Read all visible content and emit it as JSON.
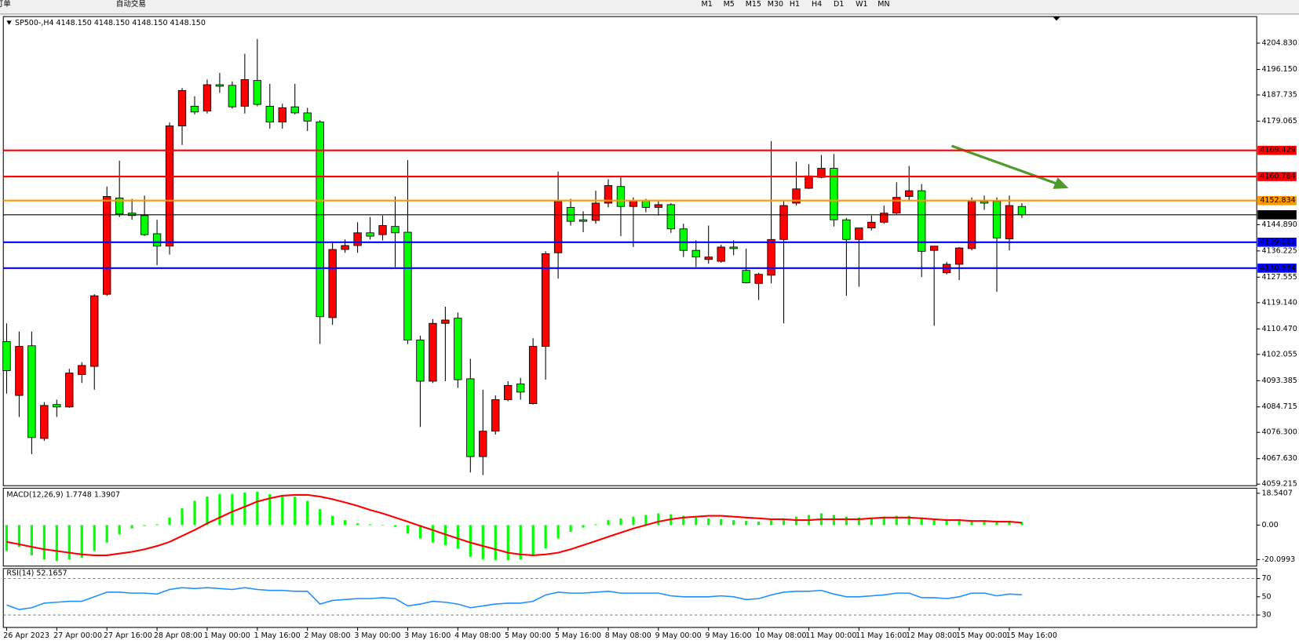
{
  "toolbar": {
    "buttons": [
      "新订单",
      "自动交易"
    ],
    "timeframes": [
      "M1",
      "M5",
      "M15",
      "M30",
      "H1",
      "H4",
      "D1",
      "W1",
      "MN"
    ]
  },
  "chart_data": [
    {
      "type": "candlestick",
      "title": "SP500-,H4 4148.150 4148.150 4148.150 4148.150",
      "x": [
        "26 Apr 2023",
        null,
        null,
        null,
        "27 Apr 00:00",
        null,
        null,
        null,
        "27 Apr 16:00",
        null,
        null,
        null,
        "28 Apr 08:00",
        null,
        null,
        null,
        "1 May 00:00",
        null,
        null,
        null,
        "1 May 16:00",
        null,
        null,
        null,
        "2 May 08:00",
        null,
        null,
        null,
        "3 May 00:00",
        null,
        null,
        null,
        "3 May 16:00",
        null,
        null,
        null,
        "4 May 08:00",
        null,
        null,
        null,
        "5 May 00:00",
        null,
        null,
        null,
        "5 May 16:00",
        null,
        null,
        null,
        "8 May 08:00",
        null,
        null,
        null,
        "9 May 00:00",
        null,
        null,
        null,
        "9 May 16:00",
        null,
        null,
        null,
        "10 May 08:00",
        null,
        null,
        null,
        "11 May 00:00",
        null,
        null,
        null,
        "11 May 16:00",
        null,
        null,
        null,
        "12 May 08:00",
        null,
        null,
        null,
        "15 May 00:00",
        null,
        null,
        null,
        "15 May 16:00",
        null
      ],
      "open": [
        4106.3,
        4088.5,
        4104.9,
        4074.3,
        4085.5,
        4084.7,
        4095.4,
        4098.1,
        4121.9,
        4153.7,
        4148.7,
        4147.9,
        4141.9,
        4137.8,
        4177.5,
        4184.0,
        4182.4,
        4191.1,
        4190.9,
        4184.0,
        4192.5,
        4184.0,
        4178.8,
        4183.8,
        4181.8,
        4178.8,
        4114.2,
        4136.7,
        4138.0,
        4142.2,
        4141.6,
        4144.3,
        4142.4,
        4106.8,
        4093.2,
        4112.3,
        4114.0,
        4094.0,
        4068.3,
        4076.7,
        4087.1,
        4092.3,
        4085.8,
        4104.7,
        4135.6,
        4150.6,
        4146.5,
        4146.3,
        4152.0,
        4157.5,
        4150.9,
        4152.8,
        4150.6,
        4151.5,
        4143.5,
        4136.4,
        4133.4,
        4132.8,
        4137.5,
        4129.8,
        4125.5,
        4128.2,
        4140.0,
        4152.0,
        4156.9,
        4160.5,
        4163.5,
        4146.5,
        4140.0,
        4143.8,
        4145.7,
        4148.7,
        4154.2,
        4156.1,
        4136.4,
        4129.0,
        4131.8,
        4137.0,
        4152.6,
        4152.6,
        4140.2,
        4150.9
      ],
      "high": [
        4112.3,
        4109.6,
        4109.6,
        4086.3,
        4087.1,
        4097.3,
        4099.5,
        4121.9,
        4157.5,
        4166.0,
        4153.4,
        4154.5,
        4146.5,
        4178.6,
        4190.0,
        4187.3,
        4192.8,
        4195.0,
        4192.2,
        4201.3,
        4206.2,
        4191.4,
        4184.8,
        4191.4,
        4183.5,
        4179.4,
        4139.1,
        4140.0,
        4145.7,
        4147.4,
        4147.9,
        4154.2,
        4166.2,
        4108.2,
        4113.7,
        4117.8,
        4115.9,
        4100.6,
        4090.4,
        4088.5,
        4093.2,
        4094.3,
        4107.4,
        4136.1,
        4162.4,
        4153.4,
        4149.3,
        4156.1,
        4159.9,
        4160.5,
        4153.9,
        4153.4,
        4153.1,
        4152.0,
        4145.2,
        4139.7,
        4144.6,
        4138.3,
        4139.7,
        4137.0,
        4129.0,
        4172.5,
        4152.6,
        4165.7,
        4164.9,
        4167.9,
        4168.2,
        4147.1,
        4143.8,
        4147.9,
        4151.2,
        4158.9,
        4164.3,
        4158.3,
        4137.8,
        4132.6,
        4137.5,
        4153.9,
        4154.5,
        4153.9,
        4154.5,
        4152.0
      ],
      "low": [
        4089.1,
        4081.4,
        4069.1,
        4073.5,
        4081.4,
        4084.4,
        4092.6,
        4090.4,
        4121.4,
        4147.4,
        4146.5,
        4141.1,
        4131.5,
        4135.0,
        4171.2,
        4181.3,
        4181.6,
        4188.4,
        4183.2,
        4181.6,
        4184.0,
        4176.6,
        4176.6,
        4181.3,
        4175.8,
        4105.5,
        4111.8,
        4135.6,
        4135.6,
        4140.0,
        4139.7,
        4130.9,
        4105.5,
        4078.1,
        4092.6,
        4093.2,
        4091.0,
        4063.1,
        4062.2,
        4075.6,
        4086.6,
        4087.1,
        4085.5,
        4093.7,
        4127.1,
        4144.6,
        4142.4,
        4145.2,
        4150.6,
        4141.1,
        4137.5,
        4149.0,
        4147.9,
        4142.2,
        4134.2,
        4130.9,
        4132.0,
        4132.3,
        4134.8,
        4125.5,
        4120.0,
        4125.5,
        4112.3,
        4151.2,
        4156.7,
        4160.2,
        4144.3,
        4121.4,
        4124.4,
        4143.0,
        4145.2,
        4148.4,
        4152.8,
        4127.6,
        4111.5,
        4128.5,
        4126.6,
        4136.4,
        4149.8,
        4122.7,
        4136.4,
        4147.1
      ],
      "close": [
        4096.7,
        4104.7,
        4074.6,
        4085.2,
        4084.7,
        4095.9,
        4098.4,
        4121.4,
        4154.2,
        4148.4,
        4147.9,
        4141.6,
        4137.8,
        4177.5,
        4189.2,
        4182.1,
        4191.1,
        4190.6,
        4183.8,
        4192.8,
        4184.6,
        4178.8,
        4183.5,
        4181.8,
        4179.1,
        4114.5,
        4136.7,
        4138.0,
        4142.2,
        4141.1,
        4144.6,
        4142.2,
        4106.8,
        4093.2,
        4112.3,
        4113.4,
        4093.7,
        4068.3,
        4076.7,
        4087.1,
        4091.8,
        4089.6,
        4104.7,
        4135.3,
        4152.6,
        4146.0,
        4146.0,
        4152.0,
        4157.8,
        4150.9,
        4152.8,
        4150.6,
        4151.5,
        4143.5,
        4136.4,
        4134.2,
        4134.2,
        4137.5,
        4137.0,
        4125.7,
        4128.5,
        4140.0,
        4151.2,
        4156.7,
        4161.0,
        4163.5,
        4146.5,
        4140.0,
        4143.8,
        4145.7,
        4148.7,
        4153.9,
        4156.1,
        4136.1,
        4137.8,
        4131.8,
        4137.2,
        4152.6,
        4152.0,
        4140.5,
        4151.2,
        4148.15
      ],
      "up_color": "#ff0000",
      "down_color": "#00ff00",
      "ylim": [
        4058.7,
        4213.6
      ],
      "yticks": [
        {
          "value": 4204.83,
          "label": "4204.830"
        },
        {
          "value": 4196.15,
          "label": "4196.150"
        },
        4187.735,
        4179.065,
        {
          "value": 4144.89,
          "label": "4144.890"
        },
        4136.225,
        4127.555,
        {
          "value": 4119.14,
          "label": "4119.140"
        },
        {
          "value": 4110.47,
          "label": "4110.470"
        },
        4102.055,
        4093.385,
        4084.715,
        {
          "value": 4076.3,
          "label": "4076.300"
        },
        {
          "value": 4067.63,
          "label": "4067.630"
        },
        4059.215
      ],
      "levels": [
        {
          "value": 4169.429,
          "color": "#ff0000"
        },
        {
          "value": 4160.784,
          "color": "#ff0000"
        },
        {
          "value": 4152.834,
          "color": "#ff9900"
        },
        {
          "value": 4148.15,
          "label": "4148.150",
          "color": "#000000"
        },
        {
          "value": 4139.091,
          "color": "#0000ff"
        },
        {
          "value": 4130.534,
          "color": "#0000ff"
        }
      ]
    },
    {
      "type": "bar",
      "title": "MACD(12,26,9) 1.7748 1.3907",
      "ylim": [
        -23.9,
        21.5
      ],
      "yticks": [
        18.5407,
        {
          "value": 0,
          "label": "0.00"
        },
        -20.0993
      ],
      "series": [
        {
          "kind": "bar",
          "color": "#00ff00",
          "values": [
            -15.1,
            -12.7,
            -17.6,
            -20.0,
            -21.0,
            -20.0,
            -19.0,
            -15.1,
            -10.2,
            -5.4,
            -2.0,
            -0.5,
            0.5,
            4.4,
            9.8,
            14.1,
            16.6,
            18.0,
            18.0,
            19.0,
            19.5,
            18.0,
            17.6,
            16.6,
            14.1,
            9.3,
            5.4,
            2.9,
            1.0,
            0.5,
            -0.3,
            -1.0,
            -4.9,
            -7.8,
            -10.2,
            -11.7,
            -13.7,
            -18.5,
            -20.0,
            -20.5,
            -20.5,
            -20.0,
            -17.6,
            -13.7,
            -7.8,
            -3.9,
            -1.5,
            0.5,
            2.9,
            3.9,
            4.9,
            5.9,
            6.8,
            6.3,
            5.4,
            4.4,
            3.9,
            3.4,
            2.9,
            2.4,
            2.0,
            2.9,
            3.9,
            4.9,
            5.9,
            6.8,
            5.9,
            4.9,
            4.4,
            4.4,
            4.9,
            5.4,
            5.4,
            4.4,
            3.4,
            2.4,
            2.4,
            2.9,
            2.9,
            2.4,
            2.4,
            1.7748
          ]
        },
        {
          "kind": "line",
          "color": "#ff0000",
          "values": [
            -9.8,
            -11.2,
            -12.7,
            -14.1,
            -15.1,
            -16.1,
            -17.1,
            -17.6,
            -17.6,
            -16.6,
            -15.6,
            -14.1,
            -12.2,
            -9.8,
            -6.3,
            -2.9,
            1.0,
            4.4,
            7.8,
            10.7,
            13.7,
            15.6,
            17.1,
            17.6,
            17.6,
            16.6,
            15.1,
            13.2,
            11.2,
            8.8,
            6.8,
            4.4,
            2.0,
            -0.5,
            -2.9,
            -5.4,
            -7.8,
            -10.2,
            -12.2,
            -14.1,
            -16.1,
            -17.1,
            -17.6,
            -17.1,
            -16.1,
            -14.1,
            -11.7,
            -9.3,
            -6.8,
            -4.4,
            -2.0,
            0.0,
            2.0,
            3.4,
            4.4,
            4.9,
            5.4,
            5.4,
            4.9,
            4.4,
            3.9,
            3.4,
            3.4,
            2.9,
            2.9,
            3.4,
            3.4,
            3.4,
            3.4,
            3.9,
            4.4,
            4.4,
            4.4,
            3.9,
            3.4,
            2.9,
            2.9,
            2.4,
            2.4,
            2.0,
            2.0,
            1.3907
          ]
        }
      ]
    },
    {
      "type": "line",
      "title": "RSI(14) 52.1657",
      "ylim": [
        16.4,
        80.9
      ],
      "yticks": [
        70,
        50,
        30
      ],
      "levels": [
        70,
        30
      ],
      "color": "#1e90ff",
      "values": [
        41,
        36,
        38,
        43,
        44,
        45,
        45,
        50,
        55,
        55,
        54,
        54,
        53,
        58,
        60,
        59,
        60,
        59,
        58,
        60,
        58,
        57,
        57,
        56,
        56,
        42,
        46,
        47,
        48,
        48,
        49,
        48,
        40,
        42,
        45,
        44,
        42,
        38,
        40,
        42,
        43,
        43,
        45,
        52,
        55,
        54,
        54,
        55,
        56,
        54,
        54,
        54,
        54,
        51,
        50,
        50,
        50,
        51,
        50,
        47,
        48,
        52,
        55,
        56,
        56,
        57,
        53,
        50,
        50,
        51,
        52,
        54,
        54,
        49,
        49,
        48,
        50,
        54,
        54,
        51,
        53,
        52.1657
      ]
    }
  ]
}
